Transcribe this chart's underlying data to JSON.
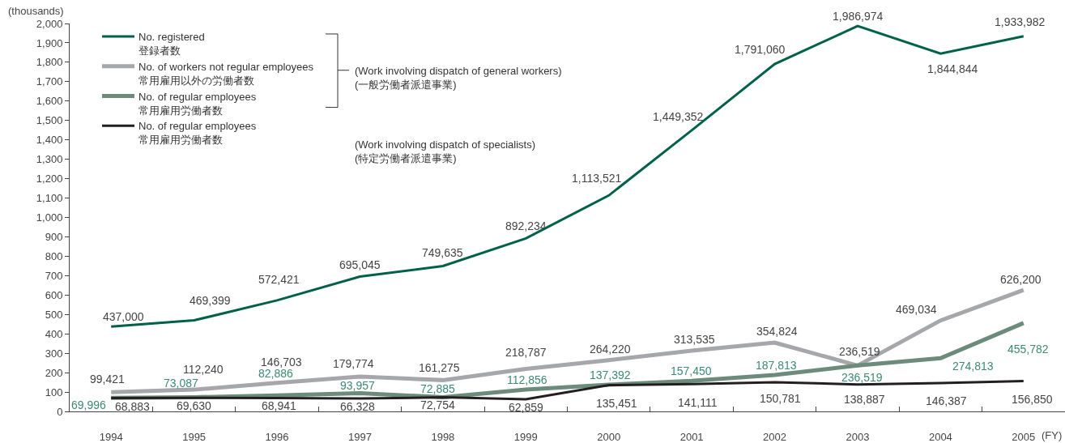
{
  "chart_data": {
    "type": "line",
    "ylabel": "(thousands)",
    "xlabel": "(FY)",
    "legend": "top left",
    "categories": [
      "1994",
      "1995",
      "1996",
      "1997",
      "1998",
      "1999",
      "2000",
      "2001",
      "2002",
      "2003",
      "2004",
      "2005"
    ],
    "ylim": [
      0,
      2000
    ],
    "yticks": [
      0,
      100,
      200,
      300,
      400,
      500,
      600,
      700,
      800,
      900,
      {
        "value": 1000,
        "label": "1,000"
      },
      {
        "value": 1100,
        "label": "1,100"
      },
      {
        "value": 1200,
        "label": "1,200"
      },
      {
        "value": 1300,
        "label": "1,300"
      },
      {
        "value": 1400,
        "label": "1,400"
      },
      {
        "value": 1500,
        "label": "1,500"
      },
      {
        "value": 1600,
        "label": "1,600"
      },
      {
        "value": 1700,
        "label": "1,700"
      },
      {
        "value": 1800,
        "label": "1,800"
      },
      {
        "value": 1900,
        "label": "1,900"
      },
      {
        "value": 2000,
        "label": "2,000"
      }
    ],
    "annotations": [
      "(Work involving dispatch of general workers)\n(一般労働者派遣事業)",
      "(Work involving dispatch of specialists)\n(特定労働者派遣事業)",
      {
        "text": "437,000",
        "x": "1994",
        "y": 437.0
      },
      {
        "text": "469,399",
        "x": "1995",
        "y": 469.399
      },
      {
        "text": "572,421",
        "x": "1996",
        "y": 572.421
      },
      {
        "text": "695,045",
        "x": "1997",
        "y": 695.045
      },
      {
        "text": "749,635",
        "x": "1998",
        "y": 749.635
      },
      {
        "text": "892,234",
        "x": "1999",
        "y": 892.234
      },
      {
        "text": "1,113,521",
        "x": "2000",
        "y": 1113.521
      },
      {
        "text": "1,449,352",
        "x": "2001",
        "y": 1449.352
      },
      {
        "text": "1,791,060",
        "x": "2002",
        "y": 1791.06
      },
      {
        "text": "1,986,974",
        "x": "2003",
        "y": 1986.974
      },
      {
        "text": "1,844,844",
        "x": "2004",
        "y": 1844.844
      },
      {
        "text": "1,933,982",
        "x": "2005",
        "y": 1933.982
      },
      {
        "text": "99,421",
        "x": "1994",
        "y": 99.421
      },
      {
        "text": "112,240",
        "x": "1995",
        "y": 112.24
      },
      {
        "text": "146,703",
        "x": "1996",
        "y": 146.703
      },
      {
        "text": "179,774",
        "x": "1997",
        "y": 179.774
      },
      {
        "text": "161,275",
        "x": "1998",
        "y": 161.275
      },
      {
        "text": "218,787",
        "x": "1999",
        "y": 218.787
      },
      {
        "text": "264,220",
        "x": "2000",
        "y": 264.22
      },
      {
        "text": "313,535",
        "x": "2001",
        "y": 313.535
      },
      {
        "text": "354,824",
        "x": "2002",
        "y": 354.824
      },
      {
        "text": "236,519",
        "x": "2003",
        "y": 236.519
      },
      {
        "text": "469,034",
        "x": "2004",
        "y": 469.034
      },
      {
        "text": "626,200",
        "x": "2005",
        "y": 626.2
      },
      {
        "text": "69,996",
        "x": "1994",
        "y": 69.996
      },
      {
        "text": "73,087",
        "x": "1995",
        "y": 73.087
      },
      {
        "text": "82,886",
        "x": "1996",
        "y": 82.886
      },
      {
        "text": "93,957",
        "x": "1997",
        "y": 93.957
      },
      {
        "text": "72,885",
        "x": "1998",
        "y": 72.885
      },
      {
        "text": "112,856",
        "x": "1999",
        "y": 112.856
      },
      {
        "text": "137,392",
        "x": "2000",
        "y": 137.392
      },
      {
        "text": "157,450",
        "x": "2001",
        "y": 157.45
      },
      {
        "text": "187,813",
        "x": "2002",
        "y": 187.813
      },
      {
        "text": "236,519",
        "x": "2003",
        "y": 236.519
      },
      {
        "text": "274,813",
        "x": "2004",
        "y": 274.813
      },
      {
        "text": "455,782",
        "x": "2005",
        "y": 455.782
      },
      {
        "text": "68,883",
        "x": "1994",
        "y": 68.883
      },
      {
        "text": "69,630",
        "x": "1995",
        "y": 69.63
      },
      {
        "text": "68,941",
        "x": "1996",
        "y": 68.941
      },
      {
        "text": "66,328",
        "x": "1997",
        "y": 66.328
      },
      {
        "text": "72,754",
        "x": "1998",
        "y": 72.754
      },
      {
        "text": "62,859",
        "x": "1999",
        "y": 62.859
      },
      {
        "text": "135,451",
        "x": "2000",
        "y": 135.451
      },
      {
        "text": "141,111",
        "x": "2001",
        "y": 141.111
      },
      {
        "text": "150,781",
        "x": "2002",
        "y": 150.781
      },
      {
        "text": "138,887",
        "x": "2003",
        "y": 138.887
      },
      {
        "text": "146,387",
        "x": "2004",
        "y": 146.387
      },
      {
        "text": "156,850",
        "x": "2005",
        "y": 156.85
      }
    ],
    "series": [
      {
        "name": "No. registered\n登録者数",
        "color": "#00614b",
        "values": [
          437.0,
          469.399,
          572.421,
          695.045,
          749.635,
          892.234,
          1113.521,
          1449.352,
          1791.06,
          1986.974,
          1844.844,
          1933.982
        ]
      },
      {
        "name": "No. of workers not regular employees\n常用雇用以外の労働者数",
        "color": "#a6a7ab",
        "values": [
          99.421,
          112.24,
          146.703,
          179.774,
          161.275,
          218.787,
          264.22,
          313.535,
          354.824,
          236.519,
          469.034,
          626.2
        ]
      },
      {
        "name": "No. of regular employees\n常用雇用労働者数",
        "color": "#6c8b7b",
        "values": [
          69.996,
          73.087,
          82.886,
          93.957,
          72.885,
          112.856,
          137.392,
          157.45,
          187.813,
          236.519,
          274.813,
          455.782
        ]
      },
      {
        "name": "No. of regular employees\n常用雇用労働者数",
        "color": "#231f20",
        "values": [
          68.883,
          69.63,
          68.941,
          66.328,
          72.754,
          62.859,
          135.451,
          141.111,
          150.781,
          138.887,
          146.387,
          156.85
        ]
      }
    ]
  }
}
